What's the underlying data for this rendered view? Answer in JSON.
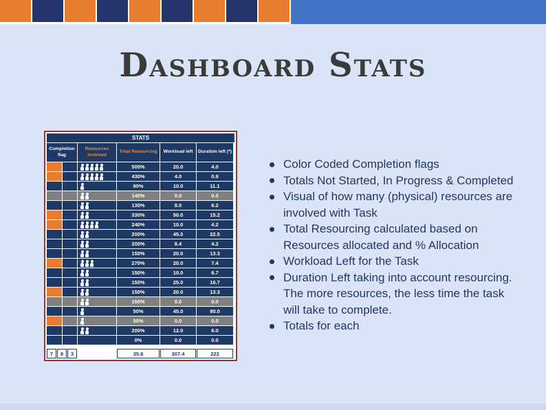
{
  "slide_title": "Dashboard Stats",
  "banner": {
    "cells": [
      "orange",
      "navy",
      "orange",
      "navy",
      "orange",
      "navy",
      "orange",
      "navy",
      "orange"
    ]
  },
  "table": {
    "title": "STATS",
    "columns": [
      {
        "label": "Completion flag",
        "color": "white"
      },
      {
        "label": "Resources involved",
        "color": "orange"
      },
      {
        "label": "Total Resourcing",
        "color": "orange"
      },
      {
        "label": "Workload left",
        "color": "white"
      },
      {
        "label": "Duration left (*)",
        "color": "white"
      }
    ],
    "rows": [
      {
        "flags": [
          "orange",
          "navy"
        ],
        "resources": 5,
        "total_resourcing": "500%",
        "workload_left": "20.0",
        "duration_left": "4.0",
        "gray": false
      },
      {
        "flags": [
          "orange",
          "navy"
        ],
        "resources": 5,
        "total_resourcing": "430%",
        "workload_left": "4.0",
        "duration_left": "0.9",
        "gray": false
      },
      {
        "flags": [
          "navy",
          "navy"
        ],
        "resources": 1,
        "total_resourcing": "90%",
        "workload_left": "10.0",
        "duration_left": "11.1",
        "gray": false
      },
      {
        "flags": [
          "gray",
          "gray"
        ],
        "resources": 2,
        "total_resourcing": "140%",
        "workload_left": "0.0",
        "duration_left": "0.0",
        "gray": true
      },
      {
        "flags": [
          "navy",
          "navy"
        ],
        "resources": 2,
        "total_resourcing": "130%",
        "workload_left": "8.0",
        "duration_left": "6.2",
        "gray": false
      },
      {
        "flags": [
          "orange",
          "navy"
        ],
        "resources": 2,
        "total_resourcing": "330%",
        "workload_left": "50.0",
        "duration_left": "15.2",
        "gray": false
      },
      {
        "flags": [
          "orange",
          "navy"
        ],
        "resources": 4,
        "total_resourcing": "240%",
        "workload_left": "10.0",
        "duration_left": "4.2",
        "gray": false
      },
      {
        "flags": [
          "navy",
          "navy"
        ],
        "resources": 2,
        "total_resourcing": "200%",
        "workload_left": "45.0",
        "duration_left": "22.5",
        "gray": false
      },
      {
        "flags": [
          "navy",
          "navy"
        ],
        "resources": 2,
        "total_resourcing": "200%",
        "workload_left": "8.4",
        "duration_left": "4.2",
        "gray": false
      },
      {
        "flags": [
          "navy",
          "navy"
        ],
        "resources": 2,
        "total_resourcing": "150%",
        "workload_left": "20.0",
        "duration_left": "13.3",
        "gray": false
      },
      {
        "flags": [
          "orange",
          "navy"
        ],
        "resources": 3,
        "total_resourcing": "270%",
        "workload_left": "20.0",
        "duration_left": "7.4",
        "gray": false
      },
      {
        "flags": [
          "navy",
          "navy"
        ],
        "resources": 2,
        "total_resourcing": "150%",
        "workload_left": "10.0",
        "duration_left": "6.7",
        "gray": false
      },
      {
        "flags": [
          "navy",
          "navy"
        ],
        "resources": 2,
        "total_resourcing": "150%",
        "workload_left": "25.0",
        "duration_left": "16.7",
        "gray": false
      },
      {
        "flags": [
          "orange",
          "navy"
        ],
        "resources": 2,
        "total_resourcing": "150%",
        "workload_left": "20.0",
        "duration_left": "13.3",
        "gray": false
      },
      {
        "flags": [
          "gray",
          "gray"
        ],
        "resources": 2,
        "total_resourcing": "150%",
        "workload_left": "0.0",
        "duration_left": "0.0",
        "gray": true
      },
      {
        "flags": [
          "navy",
          "navy"
        ],
        "resources": 1,
        "total_resourcing": "50%",
        "workload_left": "45.0",
        "duration_left": "90.0",
        "gray": false
      },
      {
        "flags": [
          "orange",
          "gray"
        ],
        "resources": 1,
        "total_resourcing": "50%",
        "workload_left": "0.0",
        "duration_left": "0.0",
        "gray": true
      },
      {
        "flags": [
          "navy",
          "navy"
        ],
        "resources": 2,
        "total_resourcing": "200%",
        "workload_left": "12.0",
        "duration_left": "6.0",
        "gray": false
      },
      {
        "flags": [
          "navy",
          "navy"
        ],
        "resources": 0,
        "total_resourcing": "0%",
        "workload_left": "0.0",
        "duration_left": "0.0",
        "gray": false
      }
    ],
    "totals": {
      "flag_counts": [
        "7",
        "8",
        "3"
      ],
      "total_resourcing": "35.8",
      "workload_left": "307.4",
      "duration_left": "222"
    }
  },
  "bullets": [
    "Color Coded Completion flags",
    "Totals Not Started, In Progress & Completed",
    "Visual of how many (physical) resources are involved with Task",
    "Total Resourcing calculated based on Resources allocated and % Allocation",
    "Workload Left for the Task",
    "Duration Left taking into account resourcing. The more resources, the less time the task will take to complete.",
    "Totals for each"
  ],
  "colors": {
    "background": "#dbe3f6",
    "banner_blue": "#4472c4",
    "navy_cell": "#1f3864",
    "orange": "#e87d31",
    "gray_row": "#7f7f7f",
    "table_border": "#943634",
    "bullet_text": "#1f3864",
    "title_text": "#3b3b3b"
  }
}
